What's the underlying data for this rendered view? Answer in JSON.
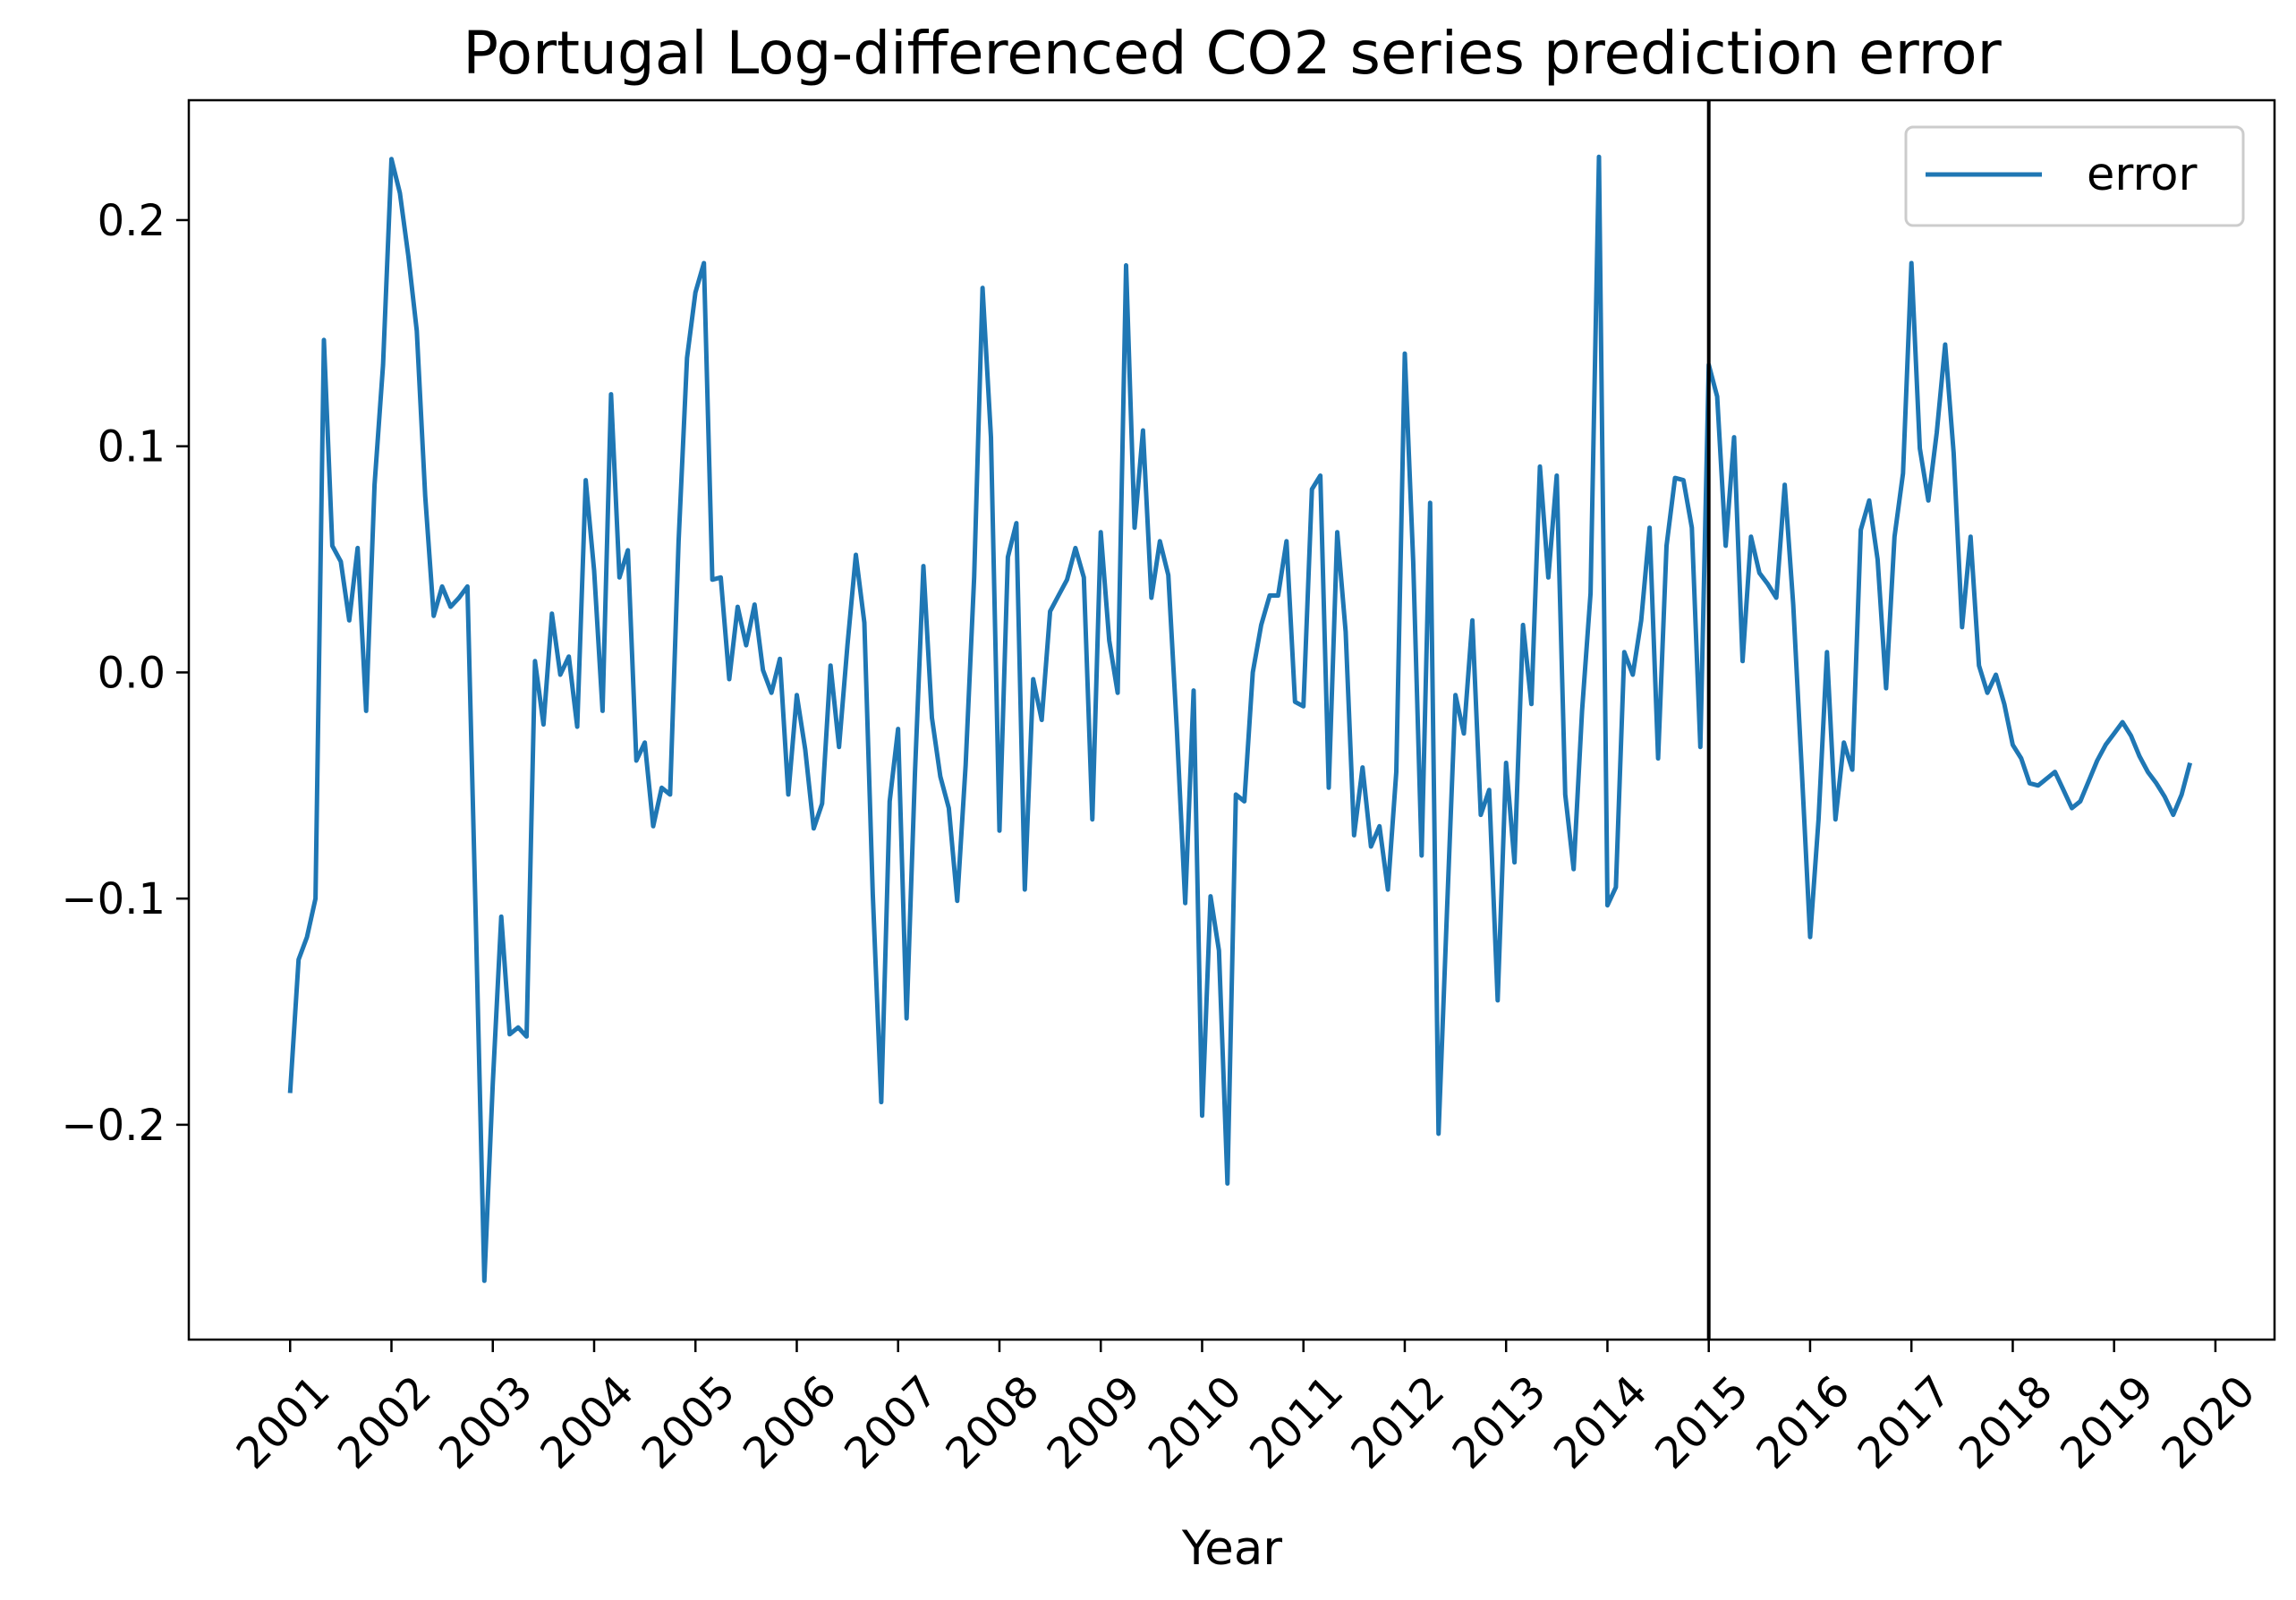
{
  "chart_data": {
    "type": "line",
    "title": "Portugal Log-differenced CO2 series prediction error",
    "xlabel": "Year",
    "ylabel": "",
    "x_ticks": [
      "2001",
      "2002",
      "2003",
      "2004",
      "2005",
      "2006",
      "2007",
      "2008",
      "2009",
      "2010",
      "2011",
      "2012",
      "2013",
      "2014",
      "2015",
      "2016",
      "2017",
      "2018",
      "2019",
      "2020"
    ],
    "y_ticks": [
      -0.2,
      -0.1,
      0.0,
      0.1,
      0.2
    ],
    "y_tick_labels": [
      "−0.2",
      "−0.1",
      "0.0",
      "0.1",
      "0.2"
    ],
    "xlim": [
      "2000-01",
      "2020-08"
    ],
    "ylim": [
      -0.295,
      0.253
    ],
    "vertical_line": "2015-01",
    "grid": false,
    "legend": {
      "position": "top-right",
      "entries": [
        "error"
      ]
    },
    "series": [
      {
        "name": "error",
        "color": "#1f77b4",
        "start": "2001-01",
        "frequency": "monthly",
        "values": [
          -0.186,
          -0.127,
          -0.117,
          -0.1,
          0.147,
          0.056,
          0.049,
          0.023,
          0.055,
          -0.017,
          0.083,
          0.136,
          0.227,
          0.212,
          0.184,
          0.151,
          0.078,
          0.025,
          0.038,
          0.029,
          0.033,
          0.038,
          -0.112,
          -0.269,
          -0.182,
          -0.108,
          -0.16,
          -0.157,
          -0.161,
          0.005,
          -0.023,
          0.026,
          -0.001,
          0.007,
          -0.024,
          0.085,
          0.045,
          -0.017,
          0.123,
          0.042,
          0.054,
          -0.039,
          -0.031,
          -0.068,
          -0.051,
          -0.054,
          0.058,
          0.139,
          0.168,
          0.181,
          0.041,
          0.042,
          -0.003,
          0.029,
          0.012,
          0.03,
          0.001,
          -0.009,
          0.006,
          -0.054,
          -0.01,
          -0.034,
          -0.069,
          -0.058,
          0.003,
          -0.033,
          0.012,
          0.052,
          0.022,
          -0.098,
          -0.19,
          -0.057,
          -0.025,
          -0.153,
          -0.044,
          0.047,
          -0.02,
          -0.046,
          -0.06,
          -0.101,
          -0.041,
          0.042,
          0.17,
          0.104,
          -0.07,
          0.051,
          0.066,
          -0.096,
          -0.003,
          -0.021,
          0.027,
          0.034,
          0.041,
          0.055,
          0.042,
          -0.065,
          0.062,
          0.014,
          -0.009,
          0.18,
          0.064,
          0.107,
          0.033,
          0.058,
          0.043,
          -0.025,
          -0.102,
          -0.008,
          -0.196,
          -0.099,
          -0.123,
          -0.226,
          -0.054,
          -0.057,
          0.0,
          0.021,
          0.034,
          0.034,
          0.058,
          -0.013,
          -0.015,
          0.081,
          0.087,
          -0.051,
          0.062,
          0.018,
          -0.072,
          -0.042,
          -0.077,
          -0.068,
          -0.096,
          -0.044,
          0.141,
          0.049,
          -0.081,
          0.075,
          -0.204,
          -0.106,
          -0.01,
          -0.027,
          0.023,
          -0.063,
          -0.052,
          -0.145,
          -0.04,
          -0.084,
          0.021,
          -0.014,
          0.091,
          0.042,
          0.087,
          -0.054,
          -0.087,
          -0.017,
          0.035,
          0.228,
          -0.103,
          -0.095,
          0.009,
          -0.001,
          0.023,
          0.064,
          -0.038,
          0.056,
          0.086,
          0.085,
          0.064,
          -0.033,
          0.136,
          0.122,
          0.056,
          0.104,
          0.005,
          0.06,
          0.044,
          0.039,
          0.033,
          0.083,
          0.03,
          -0.042,
          -0.117,
          -0.065,
          0.009,
          -0.065,
          -0.031,
          -0.043,
          0.063,
          0.076,
          0.05,
          -0.007,
          0.06,
          0.088,
          0.181,
          0.099,
          0.076,
          0.106,
          0.145,
          0.097,
          0.02,
          0.06,
          0.003,
          -0.009,
          -0.001,
          -0.014,
          -0.032,
          -0.038,
          -0.049,
          -0.05,
          -0.047,
          -0.044,
          -0.052,
          -0.06,
          -0.057,
          -0.048,
          -0.039,
          -0.032,
          -0.027,
          -0.022,
          -0.028,
          -0.037,
          -0.044,
          -0.049,
          -0.055,
          -0.063,
          -0.054,
          -0.04
        ]
      }
    ]
  }
}
